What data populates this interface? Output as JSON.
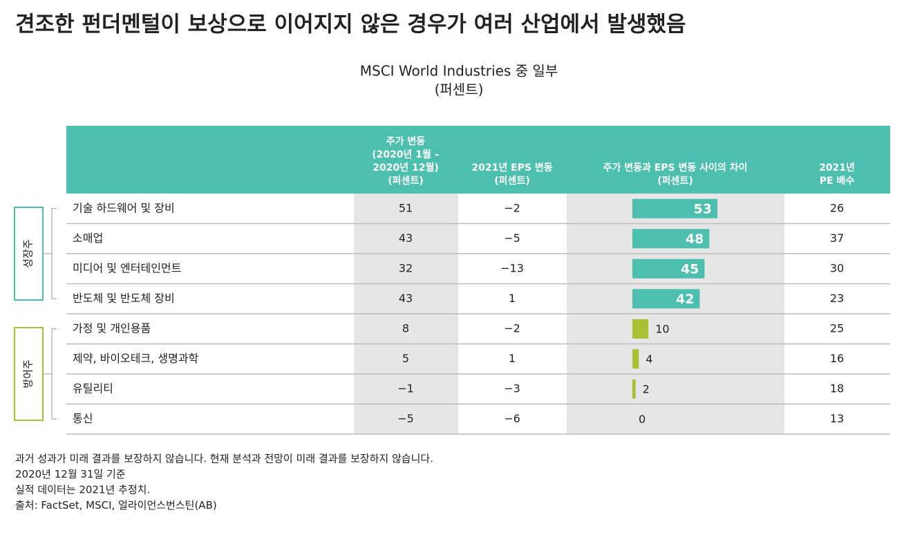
{
  "title": "견조한 펀더멘털이 보상으로 이어지지 않은 경우가 여러 산업에서 발생했음",
  "subtitle": "MSCI World Industries 중 일부",
  "unit": "(퍼센트)",
  "table": {
    "columns": [
      "주가 변동\n(2020년 1월 –\n2020년 12월)\n(퍼센트)",
      "2021년 EPS 변동\n(퍼센트)",
      "주가 변동과 EPS 변동 사이의 차이\n(퍼센트)",
      "2021년\nPE 배수"
    ],
    "groups": [
      {
        "label": "성장주",
        "color": "#4dbfae",
        "value_label": "inside",
        "rows": [
          [
            "기술 하드웨어 및 장비",
            51,
            {
              "value": -2,
              "label": "−2"
            },
            53,
            26
          ],
          [
            "소매업",
            43,
            {
              "value": -5,
              "label": "−5"
            },
            48,
            37
          ],
          [
            "미디어 및 엔터테인먼트",
            32,
            {
              "value": -13,
              "label": "−13"
            },
            45,
            30
          ],
          [
            "반도체 및 반도체 장비",
            43,
            1,
            42,
            23
          ]
        ]
      },
      {
        "label": "방어주",
        "color": "#a8c032",
        "value_label": "outside",
        "rows": [
          [
            "가정 및 개인용품",
            8,
            {
              "value": -2,
              "label": "−2"
            },
            10,
            25
          ],
          [
            "제약, 바이오테크, 생명과학",
            5,
            1,
            4,
            16
          ],
          [
            "유틸리티",
            {
              "value": -1,
              "label": "−1"
            },
            {
              "value": -3,
              "label": "−3"
            },
            2,
            18
          ],
          [
            "통신",
            {
              "value": -5,
              "label": "−5"
            },
            {
              "value": -6,
              "label": "−6"
            },
            0,
            13
          ]
        ]
      }
    ]
  },
  "footnotes": [
    "과거 성과가 미래 결과를 보장하지 않습니다. 현재 분석과 전망이 미래 결과를 보장하지 않습니다.",
    "2020년 12월 31일 기준",
    "실적 데이터는 2021년 추정치.",
    "출처: FactSet, MSCI, 얼라이언스번스틴(AB)"
  ]
}
